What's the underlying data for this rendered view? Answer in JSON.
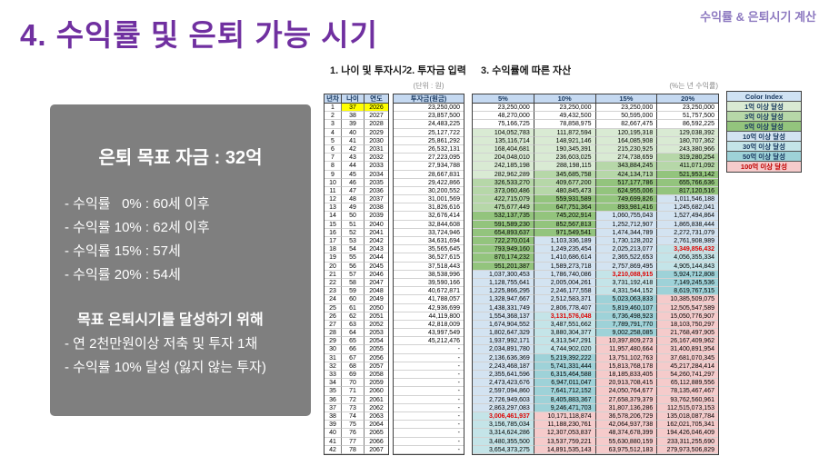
{
  "header": {
    "title": "4. 수익률 및 은퇴 가능 시기",
    "corner": "수익률 & 은퇴시기 계산"
  },
  "panel": {
    "title": "은퇴 목표 자금 : 32억",
    "lines": [
      "- 수익률   0% : 60세 이후",
      "- 수익률 10% : 62세 이후",
      "- 수익률 15% : 57세",
      "- 수익률 20% : 54세"
    ],
    "goal_title": "목표 은퇴시기를 달성하기 위해",
    "goal_lines": [
      "- 연 2천만원이상 저축 및 투자 1채",
      "- 수익률 10% 달성 (잃지 않는 투자)"
    ]
  },
  "sections": {
    "s1": "1. 나이 및 투자시기",
    "s2": "2. 투자금 입력",
    "s3": "3. 수익률에 따른 자산",
    "unit_left": "(단위 : 원)",
    "unit_right": "(%는 년 수익률)"
  },
  "table": {
    "left_headers": [
      "년차",
      "나이",
      "연도"
    ],
    "invest_header": "투자금(원금)",
    "rate_headers": [
      "5%",
      "10%",
      "15%",
      "20%"
    ],
    "rows": [
      {
        "n": 1,
        "age": 37,
        "year": 2026,
        "invest": "23,250,000",
        "v": [
          "23,250,000",
          "23,250,000",
          "23,250,000",
          "23,250,000"
        ]
      },
      {
        "n": 2,
        "age": 38,
        "year": 2027,
        "invest": "23,857,500",
        "v": [
          "48,270,000",
          "49,432,500",
          "50,595,000",
          "51,757,500"
        ]
      },
      {
        "n": 3,
        "age": 39,
        "year": 2028,
        "invest": "24,483,225",
        "v": [
          "75,166,725",
          "78,858,975",
          "82,667,475",
          "86,592,225"
        ]
      },
      {
        "n": 4,
        "age": 40,
        "year": 2029,
        "invest": "25,127,722",
        "v": [
          "104,052,783",
          "111,872,594",
          "120,195,318",
          "129,038,392"
        ]
      },
      {
        "n": 5,
        "age": 41,
        "year": 2030,
        "invest": "25,861,292",
        "v": [
          "135,116,714",
          "148,921,146",
          "164,085,908",
          "180,707,362"
        ]
      },
      {
        "n": 6,
        "age": 42,
        "year": 2031,
        "invest": "26,532,131",
        "v": [
          "168,404,681",
          "190,345,391",
          "215,230,925",
          "243,380,966"
        ]
      },
      {
        "n": 7,
        "age": 43,
        "year": 2032,
        "invest": "27,223,095",
        "v": [
          "204,048,010",
          "236,603,025",
          "274,738,659",
          "319,280,254"
        ]
      },
      {
        "n": 8,
        "age": 44,
        "year": 2033,
        "invest": "27,934,788",
        "v": [
          "242,185,198",
          "288,198,115",
          "343,884,245",
          "411,071,092"
        ]
      },
      {
        "n": 9,
        "age": 45,
        "year": 2034,
        "invest": "28,667,831",
        "v": [
          "282,962,289",
          "345,685,758",
          "424,134,713",
          "521,953,142"
        ]
      },
      {
        "n": 10,
        "age": 46,
        "year": 2035,
        "invest": "29,422,866",
        "v": [
          "326,533,270",
          "409,677,200",
          "517,177,786",
          "655,766,636"
        ]
      },
      {
        "n": 11,
        "age": 47,
        "year": 2036,
        "invest": "30,200,552",
        "v": [
          "373,060,486",
          "480,845,473",
          "624,955,006",
          "817,120,516"
        ]
      },
      {
        "n": 12,
        "age": 48,
        "year": 2037,
        "invest": "31,001,569",
        "v": [
          "422,715,079",
          "559,931,589",
          "749,699,826",
          "1,011,546,188"
        ]
      },
      {
        "n": 13,
        "age": 49,
        "year": 2038,
        "invest": "31,826,616",
        "v": [
          "475,677,449",
          "647,751,364",
          "893,981,416",
          "1,245,682,041"
        ]
      },
      {
        "n": 14,
        "age": 50,
        "year": 2039,
        "invest": "32,676,414",
        "v": [
          "532,137,735",
          "745,202,914",
          "1,060,755,043",
          "1,527,494,864"
        ]
      },
      {
        "n": 15,
        "age": 51,
        "year": 2040,
        "invest": "32,844,608",
        "v": [
          "591,589,230",
          "852,567,813",
          "1,252,712,907",
          "1,865,838,444"
        ]
      },
      {
        "n": 16,
        "age": 52,
        "year": 2041,
        "invest": "33,724,946",
        "v": [
          "654,893,637",
          "971,549,541",
          "1,474,344,789",
          "2,272,731,079"
        ]
      },
      {
        "n": 17,
        "age": 53,
        "year": 2042,
        "invest": "34,631,694",
        "v": [
          "722,270,014",
          "1,103,336,189",
          "1,730,128,202",
          "2,761,908,989"
        ]
      },
      {
        "n": 18,
        "age": 54,
        "year": 2043,
        "invest": "35,565,645",
        "v": [
          "793,949,160",
          "1,249,235,454",
          "2,025,213,077",
          "3,349,856,432"
        ]
      },
      {
        "n": 19,
        "age": 55,
        "year": 2044,
        "invest": "36,527,615",
        "v": [
          "870,174,232",
          "1,410,686,614",
          "2,365,522,653",
          "4,056,355,334"
        ]
      },
      {
        "n": 20,
        "age": 56,
        "year": 2045,
        "invest": "37,518,443",
        "v": [
          "951,201,387",
          "1,589,273,718",
          "2,757,869,495",
          "4,905,144,843"
        ]
      },
      {
        "n": 21,
        "age": 57,
        "year": 2046,
        "invest": "38,538,996",
        "v": [
          "1,037,300,453",
          "1,786,740,086",
          "3,210,088,915",
          "5,924,712,808"
        ]
      },
      {
        "n": 22,
        "age": 58,
        "year": 2047,
        "invest": "39,590,166",
        "v": [
          "1,128,755,641",
          "2,005,004,261",
          "3,731,192,418",
          "7,149,245,536"
        ]
      },
      {
        "n": 23,
        "age": 59,
        "year": 2048,
        "invest": "40,672,871",
        "v": [
          "1,225,866,295",
          "2,246,177,558",
          "4,331,544,152",
          "8,619,767,515"
        ]
      },
      {
        "n": 24,
        "age": 60,
        "year": 2049,
        "invest": "41,788,057",
        "v": [
          "1,328,947,667",
          "2,512,583,371",
          "5,023,063,833",
          "10,385,509,075"
        ]
      },
      {
        "n": 25,
        "age": 61,
        "year": 2050,
        "invest": "42,936,699",
        "v": [
          "1,438,331,749",
          "2,806,778,407",
          "5,819,460,107",
          "12,505,547,589"
        ]
      },
      {
        "n": 26,
        "age": 62,
        "year": 2051,
        "invest": "44,119,800",
        "v": [
          "1,554,368,137",
          "3,131,576,048",
          "6,736,498,923",
          "15,050,776,907"
        ]
      },
      {
        "n": 27,
        "age": 63,
        "year": 2052,
        "invest": "42,818,009",
        "v": [
          "1,674,904,552",
          "3,487,551,662",
          "7,789,791,770",
          "18,103,750,297"
        ]
      },
      {
        "n": 28,
        "age": 64,
        "year": 2053,
        "invest": "43,997,549",
        "v": [
          "1,802,647,329",
          "3,880,304,377",
          "9,002,258,085",
          "21,768,497,905"
        ]
      },
      {
        "n": 29,
        "age": 65,
        "year": 2054,
        "invest": "45,212,476",
        "v": [
          "1,937,992,171",
          "4,313,547,291",
          "10,397,809,273",
          "26,167,409,962"
        ]
      },
      {
        "n": 30,
        "age": 66,
        "year": 2055,
        "invest": "-",
        "v": [
          "2,034,891,780",
          "4,744,902,020",
          "11,957,480,664",
          "31,400,891,954"
        ]
      },
      {
        "n": 31,
        "age": 67,
        "year": 2056,
        "invest": "-",
        "v": [
          "2,136,636,369",
          "5,219,392,222",
          "13,751,102,763",
          "37,681,070,345"
        ]
      },
      {
        "n": 32,
        "age": 68,
        "year": 2057,
        "invest": "-",
        "v": [
          "2,243,468,187",
          "5,741,331,444",
          "15,813,768,178",
          "45,217,284,414"
        ]
      },
      {
        "n": 33,
        "age": 69,
        "year": 2058,
        "invest": "-",
        "v": [
          "2,355,641,596",
          "6,315,464,588",
          "18,185,833,405",
          "54,260,741,297"
        ]
      },
      {
        "n": 34,
        "age": 70,
        "year": 2059,
        "invest": "-",
        "v": [
          "2,473,423,676",
          "6,947,011,047",
          "20,913,708,415",
          "65,112,889,556"
        ]
      },
      {
        "n": 35,
        "age": 71,
        "year": 2060,
        "invest": "-",
        "v": [
          "2,597,094,860",
          "7,641,712,152",
          "24,050,764,677",
          "78,135,467,467"
        ]
      },
      {
        "n": 36,
        "age": 72,
        "year": 2061,
        "invest": "-",
        "v": [
          "2,726,949,603",
          "8,405,883,367",
          "27,658,379,379",
          "93,762,560,961"
        ]
      },
      {
        "n": 37,
        "age": 73,
        "year": 2062,
        "invest": "-",
        "v": [
          "2,863,297,083",
          "9,246,471,703",
          "31,807,136,286",
          "112,515,073,153"
        ]
      },
      {
        "n": 38,
        "age": 74,
        "year": 2063,
        "invest": "-",
        "v": [
          "3,006,461,937",
          "10,171,118,874",
          "36,578,206,729",
          "135,018,087,784"
        ]
      },
      {
        "n": 39,
        "age": 75,
        "year": 2064,
        "invest": "-",
        "v": [
          "3,156,785,034",
          "11,188,230,761",
          "42,064,937,738",
          "162,021,705,341"
        ]
      },
      {
        "n": 40,
        "age": 76,
        "year": 2065,
        "invest": "-",
        "v": [
          "3,314,624,286",
          "12,307,053,837",
          "48,374,678,399",
          "194,426,046,409"
        ]
      },
      {
        "n": 41,
        "age": 77,
        "year": 2066,
        "invest": "-",
        "v": [
          "3,480,355,500",
          "13,537,759,221",
          "55,630,880,159",
          "233,311,255,690"
        ]
      },
      {
        "n": 42,
        "age": 78,
        "year": 2067,
        "invest": "-",
        "v": [
          "3,654,373,275",
          "14,891,535,143",
          "63,975,512,183",
          "279,973,506,829"
        ]
      }
    ]
  },
  "legend": {
    "title": "Color Index",
    "items": [
      {
        "label": "1억 이상 달성",
        "min": 100000000,
        "color": "#d9ead3"
      },
      {
        "label": "3억 이상 달성",
        "min": 300000000,
        "color": "#b6d7a8"
      },
      {
        "label": "5억 이상 달성",
        "min": 500000000,
        "color": "#93c47d"
      },
      {
        "label": "10억 이상 달성",
        "min": 1000000000,
        "color": "#d3e3f1"
      },
      {
        "label": "30억 이상 달성",
        "min": 3000000000,
        "color": "#c4e4e8"
      },
      {
        "label": "50억 이상 달성",
        "min": 5000000000,
        "color": "#9ed2d8"
      },
      {
        "label": "100억 이상 달성",
        "min": 10000000000,
        "color": "#f5cbcb"
      }
    ]
  },
  "colors": {
    "highlight": "#ffff00",
    "red_text": "#e00000",
    "red_threshold": 3000000000,
    "legend_last_text": "#c00000"
  }
}
